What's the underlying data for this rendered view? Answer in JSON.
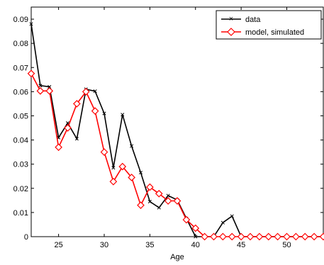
{
  "chart_data": {
    "type": "line",
    "title": "",
    "xlabel": "Age",
    "ylabel": "",
    "xlim": [
      22,
      54
    ],
    "ylim": [
      0,
      0.095
    ],
    "grid": false,
    "legend_position": "top-right",
    "xticks": [
      25,
      30,
      35,
      40,
      45,
      50
    ],
    "yticks": [
      0,
      0.01,
      0.02,
      0.03,
      0.04,
      0.05,
      0.06,
      0.07,
      0.08,
      0.09
    ],
    "x": [
      22,
      23,
      24,
      25,
      26,
      27,
      28,
      29,
      30,
      31,
      32,
      33,
      34,
      35,
      36,
      37,
      38,
      39,
      40,
      41,
      42,
      43,
      44,
      45,
      46,
      47,
      48,
      49,
      50,
      51,
      52,
      53,
      54
    ],
    "series": [
      {
        "name": "data",
        "color": "#000000",
        "marker": "x",
        "values": [
          0.088,
          0.0625,
          0.062,
          0.041,
          0.047,
          0.0405,
          0.061,
          0.0602,
          0.051,
          0.0285,
          0.0505,
          0.0375,
          0.0265,
          0.0145,
          0.012,
          0.017,
          0.0152,
          0.0075,
          0,
          0,
          0,
          0.0058,
          0.0085,
          0,
          0,
          0,
          0,
          0,
          0,
          0,
          0,
          0,
          0
        ]
      },
      {
        "name": "model, simulated",
        "color": "#ff0000",
        "marker": "diamond",
        "values": [
          0.0675,
          0.0603,
          0.0603,
          0.037,
          0.045,
          0.055,
          0.06,
          0.052,
          0.035,
          0.0228,
          0.029,
          0.0245,
          0.013,
          0.0205,
          0.0178,
          0.0148,
          0.0148,
          0.007,
          0.0035,
          0,
          0,
          0,
          0,
          0,
          0,
          0,
          0,
          0,
          0,
          0,
          0,
          0,
          0
        ]
      }
    ]
  }
}
